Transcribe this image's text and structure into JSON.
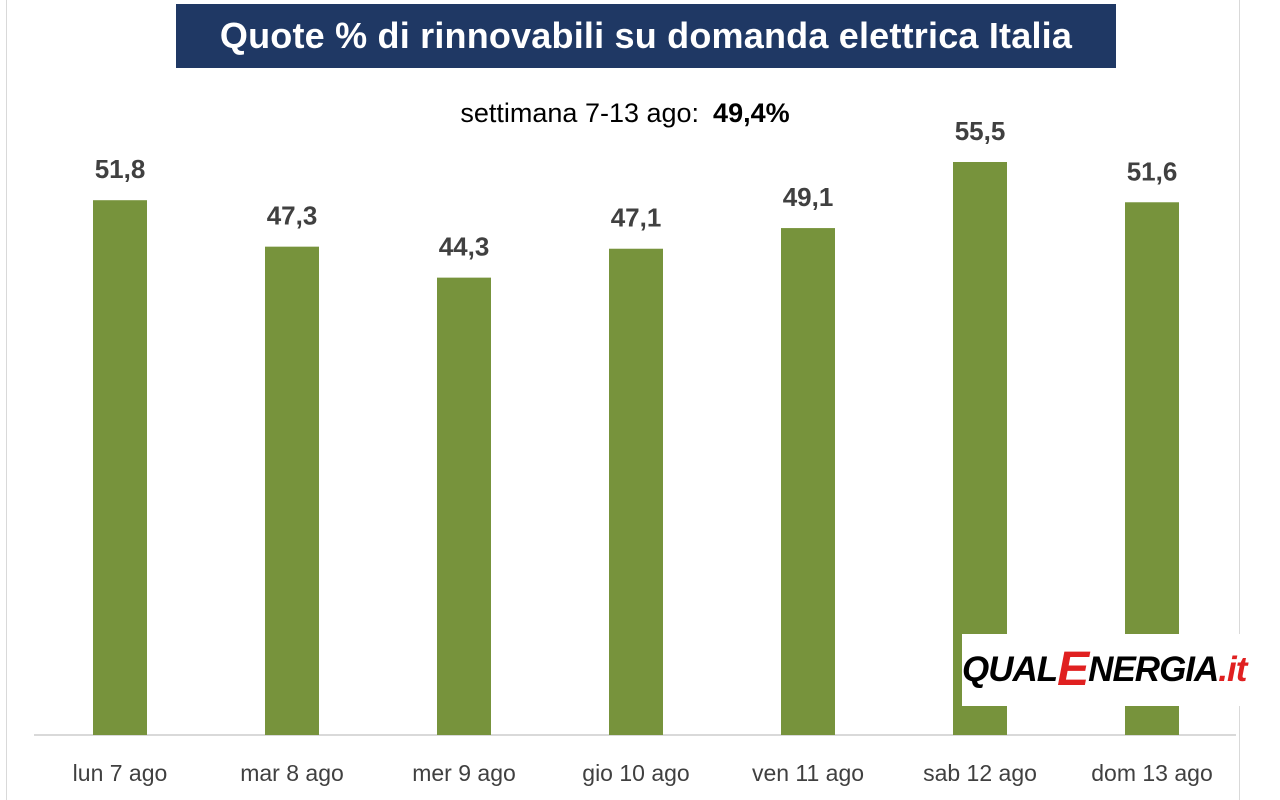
{
  "header": {
    "title": "Quote % di rinnovabili su domanda elettrica Italia",
    "subtitle_label": "settimana 7-13 ago:",
    "subtitle_value": "49,4%"
  },
  "logo": {
    "part1": "QUAL",
    "part2": "E",
    "part3": "NERGIA",
    "part4": ".it"
  },
  "colors": {
    "bar": "#77933c",
    "title_bg": "#1f3864",
    "label": "#404040",
    "axis": "#d9d9d9"
  },
  "chart_data": {
    "type": "bar",
    "title": "Quote % di rinnovabili su domanda elettrica Italia",
    "subtitle": "settimana 7-13 ago: 49,4%",
    "categories": [
      "lun 7 ago",
      "mar 8 ago",
      "mer 9 ago",
      "gio 10 ago",
      "ven 11 ago",
      "sab 12 ago",
      "dom 13 ago"
    ],
    "values": [
      51.8,
      47.3,
      44.3,
      47.1,
      49.1,
      55.5,
      51.6
    ],
    "data_labels": [
      "51,8",
      "47,3",
      "44,3",
      "47,1",
      "49,1",
      "55,5",
      "51,6"
    ],
    "xlabel": "",
    "ylabel": "",
    "ylim": [
      0,
      55.5
    ],
    "grid": false,
    "legend": "none"
  }
}
